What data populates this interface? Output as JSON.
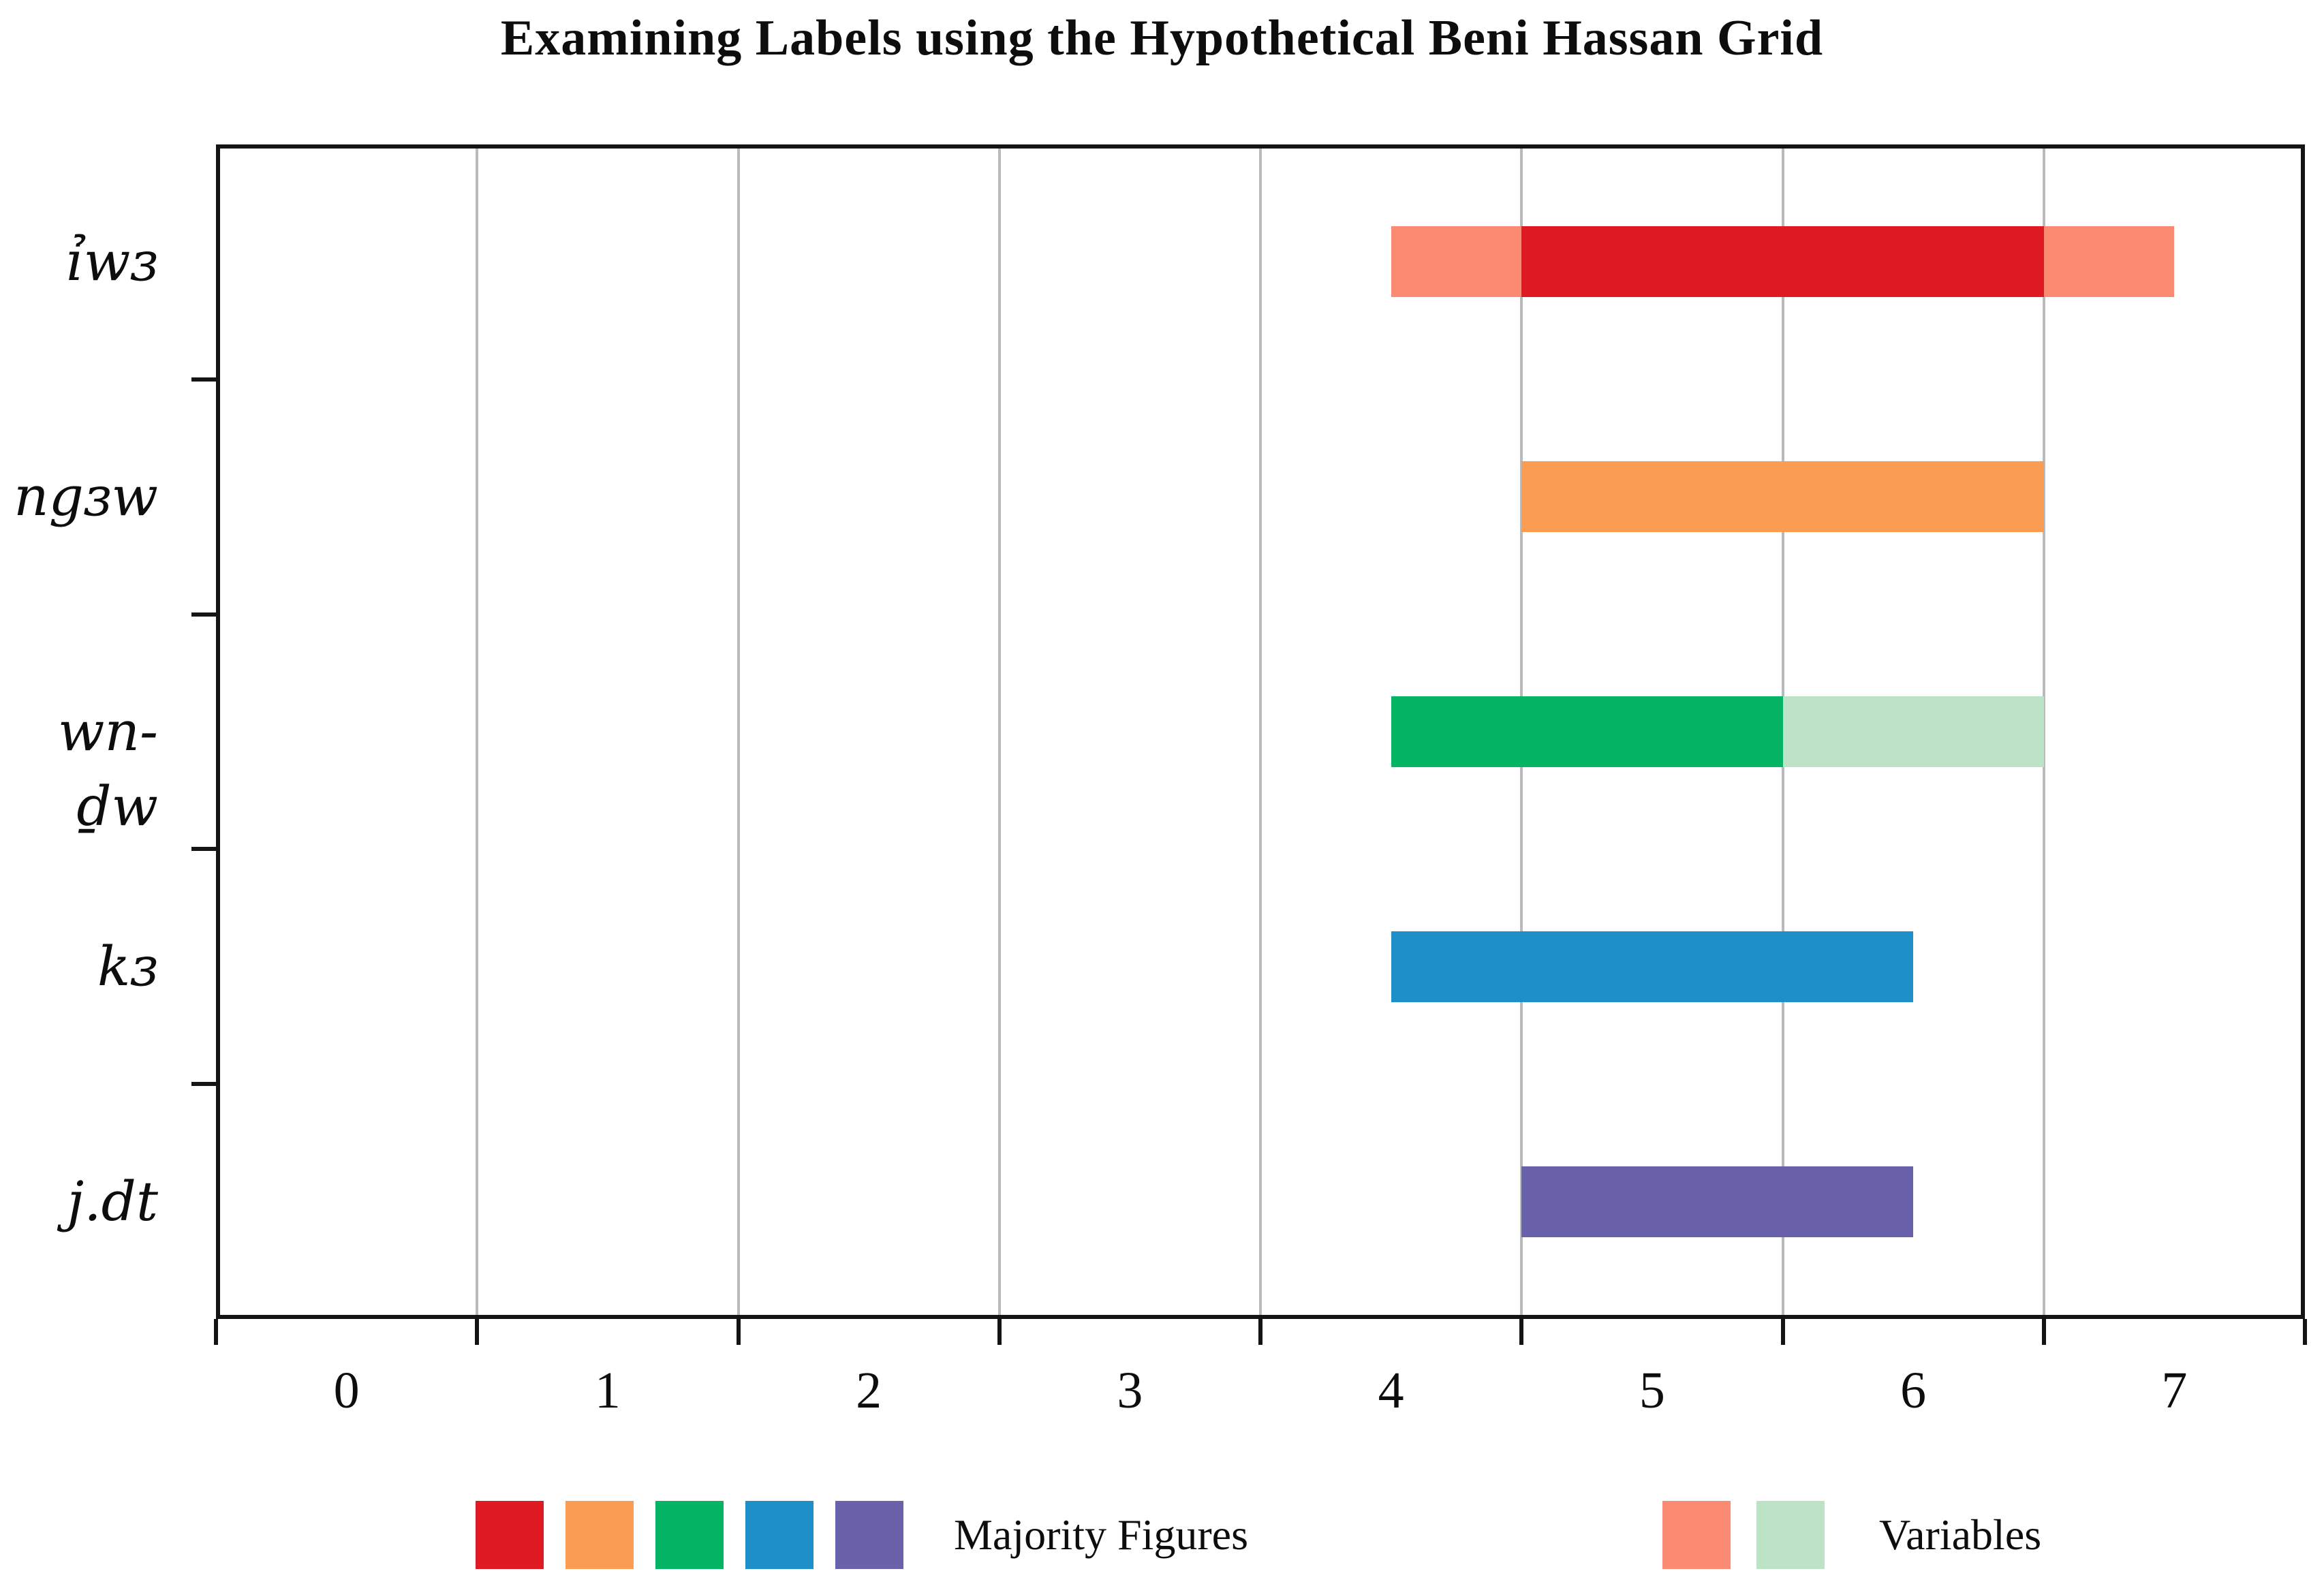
{
  "chart_data": {
    "type": "bar",
    "orientation": "horizontal",
    "title": "Examining Labels using the Hypothetical Beni Hassan Grid",
    "categories": [
      "ỉwɜ",
      "ngɜw",
      "wn-ḏw",
      "kɜ",
      "j.dt"
    ],
    "x_ticks": [
      "0",
      "1",
      "2",
      "3",
      "4",
      "5",
      "6",
      "7"
    ],
    "x_tick_values": [
      0,
      1,
      2,
      3,
      4,
      5,
      6,
      7
    ],
    "xlim": [
      -0.5,
      7.5
    ],
    "gridlines_at": [
      0.5,
      1.5,
      2.5,
      3.5,
      4.5,
      5.5,
      6.5
    ],
    "grid": true,
    "bars": [
      {
        "category": "ỉwɜ",
        "segments": [
          {
            "start": 4.0,
            "end": 4.5,
            "color": "salmon",
            "type": "variable"
          },
          {
            "start": 4.5,
            "end": 6.5,
            "color": "red",
            "type": "majority"
          },
          {
            "start": 6.5,
            "end": 7.0,
            "color": "salmon",
            "type": "variable"
          }
        ]
      },
      {
        "category": "ngɜw",
        "segments": [
          {
            "start": 4.5,
            "end": 6.5,
            "color": "orange",
            "type": "majority"
          }
        ]
      },
      {
        "category": "wn-ḏw",
        "segments": [
          {
            "start": 4.0,
            "end": 5.5,
            "color": "green",
            "type": "majority"
          },
          {
            "start": 5.5,
            "end": 6.5,
            "color": "lightgreen",
            "type": "variable"
          }
        ]
      },
      {
        "category": "kɜ",
        "segments": [
          {
            "start": 4.0,
            "end": 6.0,
            "color": "blue",
            "type": "majority"
          }
        ]
      },
      {
        "category": "j.dt",
        "segments": [
          {
            "start": 4.5,
            "end": 6.0,
            "color": "purple",
            "type": "majority"
          }
        ]
      }
    ],
    "legend": [
      {
        "label": "Majority Figures",
        "swatches": [
          "red",
          "orange",
          "green",
          "blue",
          "purple"
        ],
        "position": "bottom-left"
      },
      {
        "label": "Variables",
        "swatches": [
          "salmon",
          "lightgreen"
        ],
        "position": "bottom-right"
      }
    ],
    "colors": {
      "red": "#df1a22",
      "orange": "#fa9d52",
      "green": "#05b565",
      "blue": "#1e8fc9",
      "purple": "#6a61ab",
      "salmon": "#fb8a72",
      "lightgreen": "#bce3c5",
      "gridline": "#b7bbbe",
      "axis": "#141414"
    }
  }
}
